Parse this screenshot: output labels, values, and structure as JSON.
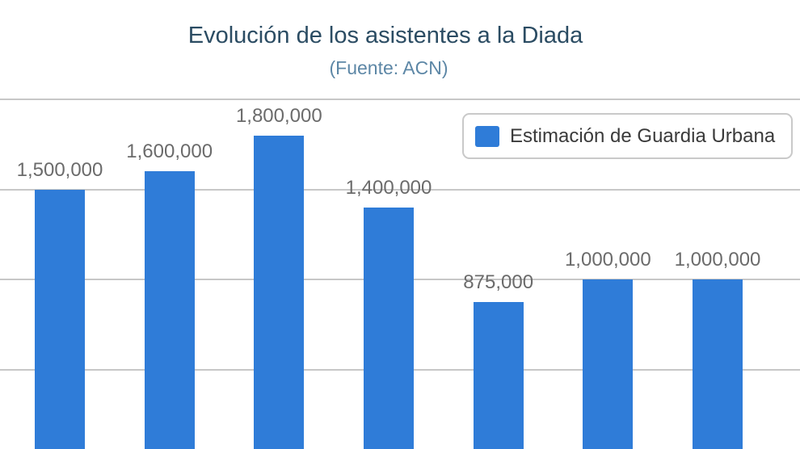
{
  "chart_data": {
    "type": "bar",
    "title": "Evolución de los asistentes a la Diada",
    "subtitle": "(Fuente: ACN)",
    "series": [
      {
        "name": "Estimación de Guardia Urbana",
        "values": [
          1500000,
          1600000,
          1800000,
          1400000,
          875000,
          1000000,
          1000000
        ]
      }
    ],
    "data_labels": [
      "1,500,000",
      "1,600,000",
      "1,800,000",
      "1,400,000",
      "875,000",
      "1,000,000",
      "1,000,000"
    ],
    "legend": {
      "label": "Estimación de Guardia Urbana",
      "position": "top-right"
    },
    "yaxis": {
      "grid": true,
      "gridline_values": [
        2000000,
        1500000,
        1000000,
        500000
      ],
      "tick_labels_visible": false
    },
    "xaxis": {
      "tick_labels_visible": false
    },
    "note": "chart cropped at bottom; bars run to image edge, no axis tick labels visible",
    "colors": {
      "bar": "#2f7cd8",
      "title": "#2b4c63",
      "subtitle": "#5d87a6",
      "value_label": "#6b6b6b",
      "gridline": "#c7c7c7",
      "legend_border": "#c9c9c9",
      "legend_text": "#3a3a3a",
      "background": "#ffffff"
    }
  }
}
